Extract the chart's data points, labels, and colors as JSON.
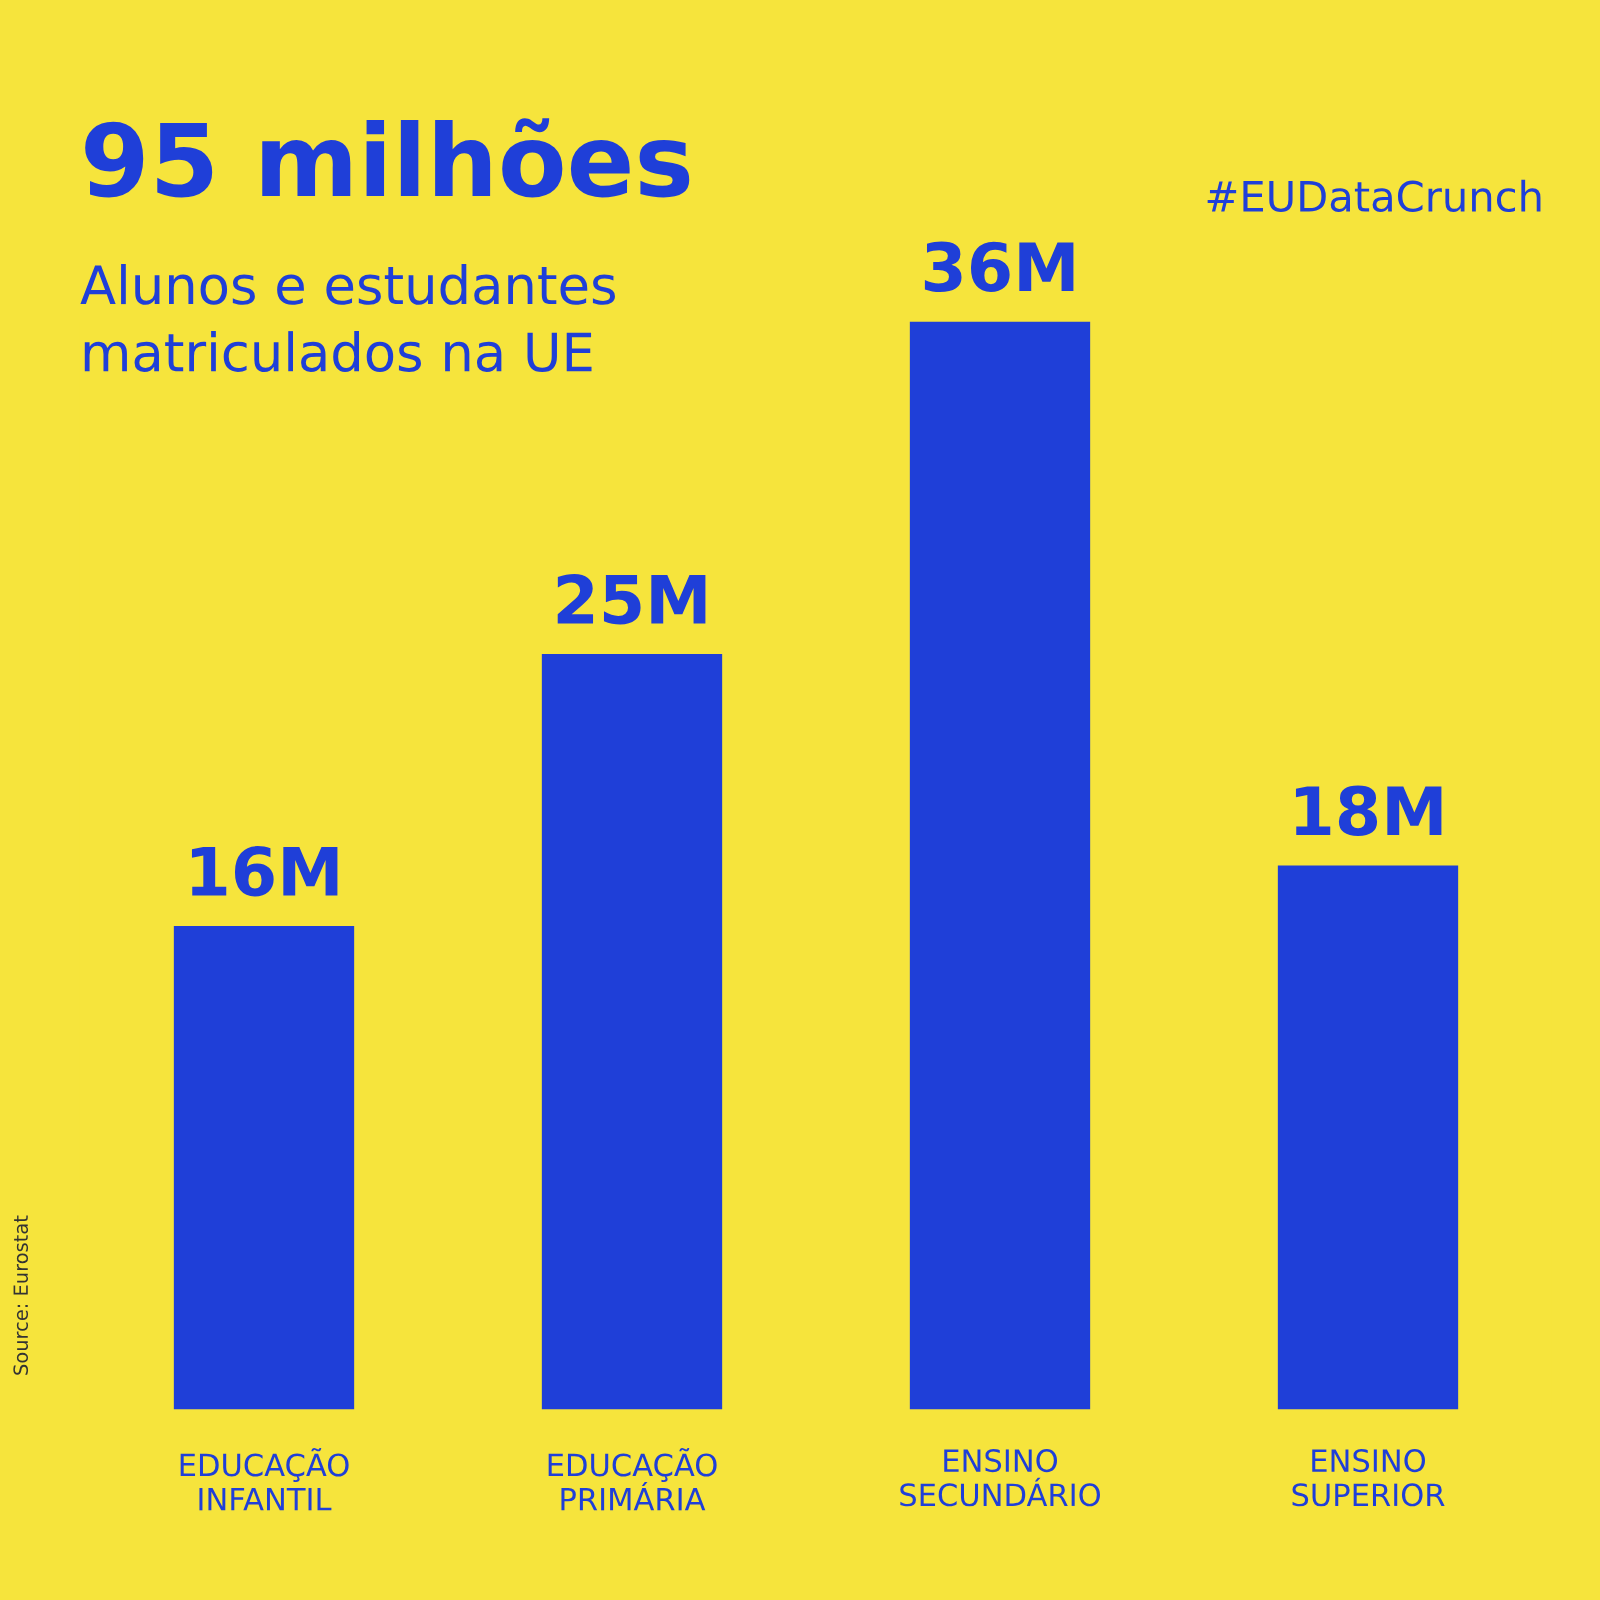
{
  "chart_data": {
    "type": "bar",
    "title": "95 milhões",
    "subtitle": "Alunos e estudantes\nmatriculados na UE",
    "categories": [
      "EDUCAÇÃO\nINFANTIL",
      "EDUCAÇÃO\nPRIMÁRIA",
      "ENSINO\nSECUNDÁRIO",
      "ENSINO\nSUPERIOR"
    ],
    "values": [
      16,
      25,
      36,
      18
    ],
    "value_labels": [
      "16M",
      "25M",
      "36M",
      "18M"
    ],
    "color": "#1f3fd8",
    "annotations": [
      "#EUDataCrunch",
      "Source: Eurostat"
    ],
    "grid": false,
    "legend": false
  }
}
